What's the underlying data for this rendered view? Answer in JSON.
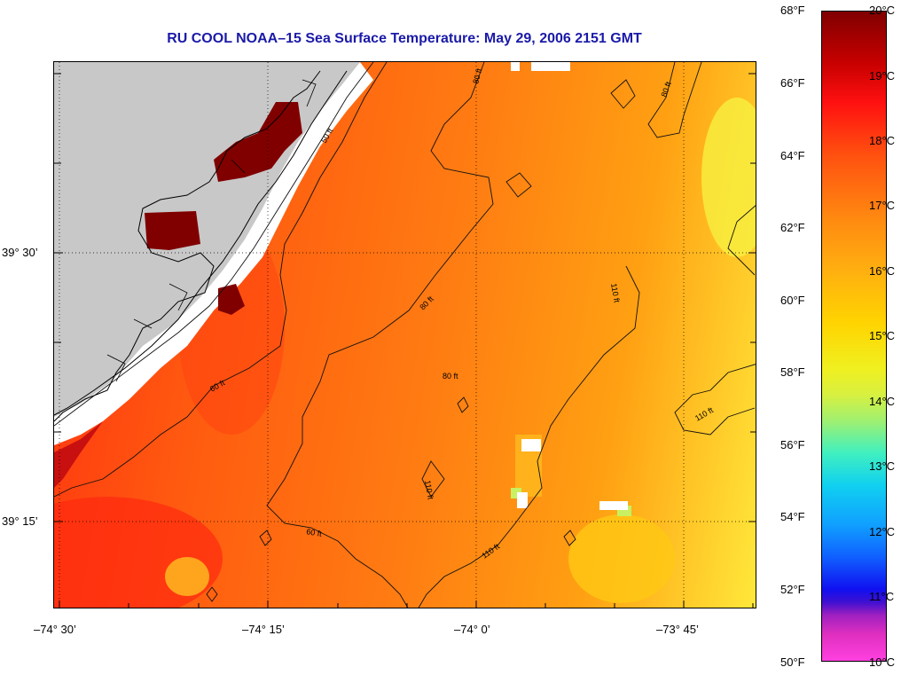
{
  "title": "RU COOL  NOAA–15  Sea Surface Temperature:  May 29, 2006 2151 GMT",
  "latitude_labels": [
    "39° 30’",
    "39° 15’"
  ],
  "longitude_labels": [
    "–74° 30’",
    "–74° 15’",
    "–74° 0’",
    "–73° 45’"
  ],
  "contour_labels": [
    "50 ft",
    "60 ft",
    "80 ft",
    "110 ft"
  ],
  "colorbar": {
    "fahrenheit": [
      "68°F",
      "66°F",
      "64°F",
      "62°F",
      "60°F",
      "58°F",
      "56°F",
      "54°F",
      "52°F",
      "50°F"
    ],
    "celsius": [
      "20°C",
      "19°C",
      "18°C",
      "17°C",
      "16°C",
      "15°C",
      "14°C",
      "13°C",
      "12°C",
      "11°C",
      "10°C"
    ]
  },
  "colors": {
    "title": "#1a1aa8",
    "land": "#c8c8c8",
    "no_data": "#ffffff",
    "warm_inshore": "#800000"
  }
}
